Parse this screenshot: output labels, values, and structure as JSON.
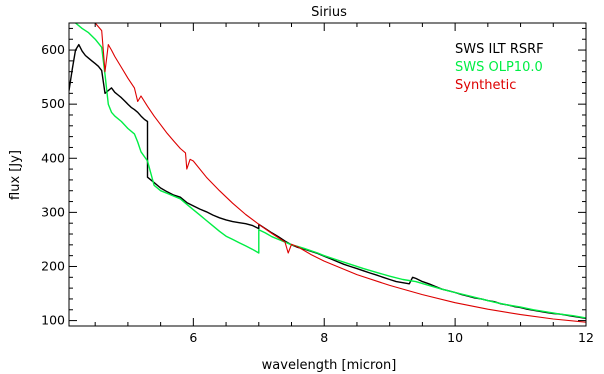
{
  "chart_data": {
    "type": "line",
    "title": "Sirius",
    "xlabel": "wavelength [micron]",
    "ylabel": "flux [Jy]",
    "xlim": [
      4.1,
      12.0
    ],
    "ylim": [
      90,
      650
    ],
    "x_ticks": [
      6,
      8,
      10,
      12
    ],
    "y_ticks": [
      100,
      200,
      300,
      400,
      500,
      600
    ],
    "legend_position": "top-right",
    "series": [
      {
        "name": "SWS ILT RSRF",
        "color": "#000000",
        "x": [
          4.1,
          4.15,
          4.2,
          4.25,
          4.3,
          4.35,
          4.4,
          4.45,
          4.5,
          4.55,
          4.6,
          4.65,
          4.7,
          4.75,
          4.8,
          4.85,
          4.9,
          4.95,
          5.0,
          5.05,
          5.1,
          5.15,
          5.2,
          5.25,
          5.3,
          5.3,
          5.4,
          5.5,
          5.6,
          5.7,
          5.8,
          5.9,
          6.0,
          6.1,
          6.2,
          6.3,
          6.4,
          6.5,
          6.6,
          6.7,
          6.8,
          6.9,
          7.0,
          7.0,
          7.1,
          7.2,
          7.3,
          7.4,
          7.5,
          7.6,
          7.7,
          7.8,
          7.9,
          8.0,
          8.1,
          8.2,
          8.3,
          8.4,
          8.5,
          8.6,
          8.7,
          8.8,
          8.9,
          9.0,
          9.1,
          9.2,
          9.3,
          9.35,
          9.4,
          9.5,
          9.6,
          9.7,
          9.8,
          9.9,
          10.0,
          10.1,
          10.2,
          10.3,
          10.4,
          10.5,
          10.6,
          10.7,
          10.8,
          10.9,
          11.0,
          11.1,
          11.2,
          11.3,
          11.4,
          11.5,
          11.6,
          11.7,
          11.8,
          11.9,
          12.0
        ],
        "y": [
          525,
          565,
          600,
          610,
          598,
          590,
          585,
          580,
          575,
          570,
          562,
          520,
          525,
          530,
          522,
          517,
          512,
          506,
          500,
          494,
          490,
          485,
          478,
          472,
          468,
          365,
          355,
          345,
          338,
          332,
          328,
          318,
          312,
          306,
          301,
          295,
          290,
          286,
          283,
          281,
          279,
          276,
          270,
          278,
          270,
          262,
          255,
          247,
          240,
          235,
          232,
          228,
          224,
          219,
          214,
          209,
          204,
          200,
          196,
          192,
          188,
          184,
          180,
          176,
          172,
          170,
          168,
          180,
          178,
          172,
          168,
          163,
          158,
          155,
          152,
          148,
          145,
          142,
          140,
          137,
          135,
          131,
          129,
          126,
          124,
          121,
          119,
          117,
          115,
          113,
          112,
          110,
          108,
          106,
          104
        ]
      },
      {
        "name": "SWS OLP10.0",
        "color": "#00ee44",
        "x": [
          4.1,
          4.2,
          4.3,
          4.4,
          4.5,
          4.6,
          4.65,
          4.7,
          4.75,
          4.8,
          4.9,
          5.0,
          5.1,
          5.15,
          5.2,
          5.3,
          5.4,
          5.5,
          5.6,
          5.7,
          5.8,
          5.9,
          6.0,
          6.1,
          6.2,
          6.3,
          6.4,
          6.5,
          6.6,
          6.7,
          6.8,
          6.9,
          7.0,
          7.0,
          7.1,
          7.2,
          7.3,
          7.4,
          7.5,
          7.6,
          7.7,
          7.8,
          7.9,
          8.0,
          8.2,
          8.4,
          8.6,
          8.8,
          9.0,
          9.2,
          9.4,
          9.6,
          9.8,
          10.0,
          10.2,
          10.4,
          10.6,
          10.8,
          11.0,
          11.2,
          11.4,
          11.6,
          11.8,
          12.0
        ],
        "y": [
          660,
          650,
          640,
          632,
          620,
          605,
          555,
          500,
          485,
          478,
          468,
          455,
          445,
          430,
          412,
          395,
          350,
          340,
          335,
          330,
          325,
          315,
          305,
          295,
          285,
          275,
          265,
          256,
          250,
          244,
          238,
          232,
          225,
          268,
          262,
          255,
          250,
          245,
          240,
          237,
          233,
          229,
          225,
          220,
          212,
          204,
          196,
          189,
          182,
          176,
          172,
          165,
          158,
          152,
          146,
          140,
          134,
          129,
          125,
          120,
          116,
          112,
          109,
          105
        ]
      },
      {
        "name": "Synthetic",
        "color": "#dd0000",
        "x": [
          4.5,
          4.6,
          4.65,
          4.7,
          4.75,
          4.8,
          4.9,
          5.0,
          5.1,
          5.15,
          5.2,
          5.3,
          5.4,
          5.5,
          5.6,
          5.7,
          5.8,
          5.88,
          5.9,
          5.95,
          6.0,
          6.2,
          6.4,
          6.6,
          6.8,
          7.0,
          7.2,
          7.4,
          7.45,
          7.5,
          7.6,
          7.8,
          8.0,
          8.5,
          9.0,
          9.5,
          10.0,
          10.5,
          11.0,
          11.5,
          12.0
        ],
        "y": [
          650,
          636,
          560,
          610,
          600,
          588,
          568,
          548,
          530,
          505,
          515,
          496,
          478,
          462,
          446,
          432,
          418,
          410,
          380,
          398,
          395,
          365,
          340,
          317,
          296,
          278,
          261,
          245,
          225,
          241,
          236,
          222,
          210,
          185,
          165,
          148,
          133,
          121,
          111,
          103,
          97
        ]
      }
    ]
  }
}
